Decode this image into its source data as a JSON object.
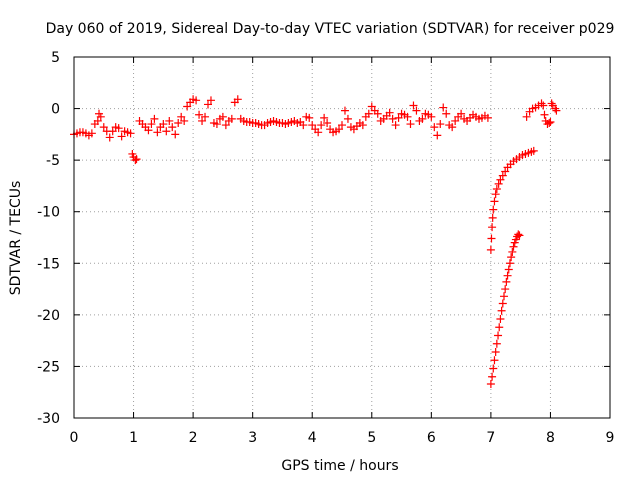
{
  "chart_data": {
    "type": "scatter",
    "title": "Day 060 of 2019, Sidereal Day-to-day VTEC variation (SDTVAR) for receiver p029",
    "xlabel": "GPS time / hours",
    "ylabel": "SDTVAR / TECUs",
    "xlim": [
      0,
      9
    ],
    "ylim": [
      -30,
      5
    ],
    "xticks": [
      "0",
      "1",
      "2",
      "3",
      "4",
      "5",
      "6",
      "7",
      "8",
      "9"
    ],
    "yticks": [
      "5",
      "0",
      "-5",
      "-10",
      "-15",
      "-20",
      "-25",
      "-30"
    ],
    "grid": true,
    "marker": "+",
    "color": "#ff0000",
    "series": [
      {
        "name": "SDTVAR",
        "points": [
          [
            0.0,
            -2.5
          ],
          [
            0.05,
            -2.4
          ],
          [
            0.1,
            -2.3
          ],
          [
            0.15,
            -2.3
          ],
          [
            0.2,
            -2.4
          ],
          [
            0.25,
            -2.6
          ],
          [
            0.3,
            -2.4
          ],
          [
            0.35,
            -1.5
          ],
          [
            0.4,
            -1.2
          ],
          [
            0.42,
            -0.5
          ],
          [
            0.45,
            -0.8
          ],
          [
            0.5,
            -1.8
          ],
          [
            0.55,
            -2.2
          ],
          [
            0.6,
            -2.8
          ],
          [
            0.65,
            -2.2
          ],
          [
            0.7,
            -1.8
          ],
          [
            0.75,
            -1.9
          ],
          [
            0.8,
            -2.7
          ],
          [
            0.85,
            -2.2
          ],
          [
            0.9,
            -2.3
          ],
          [
            0.95,
            -2.4
          ],
          [
            0.98,
            -4.4
          ],
          [
            1.0,
            -4.7
          ],
          [
            1.03,
            -5.0
          ],
          [
            1.05,
            -4.9
          ],
          [
            1.1,
            -1.2
          ],
          [
            1.15,
            -1.5
          ],
          [
            1.2,
            -1.8
          ],
          [
            1.25,
            -2.1
          ],
          [
            1.3,
            -1.5
          ],
          [
            1.35,
            -1.0
          ],
          [
            1.4,
            -2.3
          ],
          [
            1.45,
            -1.8
          ],
          [
            1.5,
            -1.5
          ],
          [
            1.55,
            -2.2
          ],
          [
            1.6,
            -1.2
          ],
          [
            1.65,
            -1.8
          ],
          [
            1.7,
            -2.5
          ],
          [
            1.75,
            -1.4
          ],
          [
            1.8,
            -0.8
          ],
          [
            1.85,
            -1.2
          ],
          [
            1.9,
            0.2
          ],
          [
            1.95,
            0.6
          ],
          [
            2.0,
            0.9
          ],
          [
            2.05,
            0.8
          ],
          [
            2.1,
            -0.6
          ],
          [
            2.15,
            -1.2
          ],
          [
            2.2,
            -0.8
          ],
          [
            2.25,
            0.4
          ],
          [
            2.3,
            0.8
          ],
          [
            2.35,
            -1.4
          ],
          [
            2.4,
            -1.5
          ],
          [
            2.45,
            -1.0
          ],
          [
            2.5,
            -0.8
          ],
          [
            2.55,
            -1.6
          ],
          [
            2.6,
            -1.2
          ],
          [
            2.65,
            -1.0
          ],
          [
            2.7,
            0.6
          ],
          [
            2.75,
            0.9
          ],
          [
            2.8,
            -1.0
          ],
          [
            2.85,
            -1.2
          ],
          [
            2.9,
            -1.3
          ],
          [
            2.95,
            -1.3
          ],
          [
            3.0,
            -1.4
          ],
          [
            3.05,
            -1.4
          ],
          [
            3.1,
            -1.5
          ],
          [
            3.15,
            -1.6
          ],
          [
            3.2,
            -1.6
          ],
          [
            3.25,
            -1.4
          ],
          [
            3.3,
            -1.3
          ],
          [
            3.35,
            -1.2
          ],
          [
            3.4,
            -1.3
          ],
          [
            3.45,
            -1.4
          ],
          [
            3.5,
            -1.4
          ],
          [
            3.55,
            -1.5
          ],
          [
            3.6,
            -1.4
          ],
          [
            3.65,
            -1.3
          ],
          [
            3.7,
            -1.2
          ],
          [
            3.75,
            -1.4
          ],
          [
            3.8,
            -1.3
          ],
          [
            3.85,
            -1.6
          ],
          [
            3.9,
            -0.8
          ],
          [
            3.95,
            -0.9
          ],
          [
            4.0,
            -1.6
          ],
          [
            4.05,
            -2.0
          ],
          [
            4.1,
            -2.3
          ],
          [
            4.15,
            -1.6
          ],
          [
            4.2,
            -0.9
          ],
          [
            4.25,
            -1.4
          ],
          [
            4.3,
            -2.0
          ],
          [
            4.35,
            -2.3
          ],
          [
            4.4,
            -2.2
          ],
          [
            4.45,
            -2.0
          ],
          [
            4.5,
            -1.6
          ],
          [
            4.55,
            -0.2
          ],
          [
            4.6,
            -1.0
          ],
          [
            4.65,
            -1.8
          ],
          [
            4.7,
            -2.0
          ],
          [
            4.75,
            -1.7
          ],
          [
            4.8,
            -1.4
          ],
          [
            4.85,
            -1.6
          ],
          [
            4.9,
            -0.8
          ],
          [
            4.95,
            -0.5
          ],
          [
            5.0,
            0.2
          ],
          [
            5.05,
            -0.2
          ],
          [
            5.1,
            -0.5
          ],
          [
            5.15,
            -1.2
          ],
          [
            5.2,
            -1.0
          ],
          [
            5.25,
            -0.7
          ],
          [
            5.3,
            -0.4
          ],
          [
            5.35,
            -1.0
          ],
          [
            5.4,
            -1.6
          ],
          [
            5.45,
            -0.9
          ],
          [
            5.5,
            -0.5
          ],
          [
            5.55,
            -0.6
          ],
          [
            5.6,
            -0.8
          ],
          [
            5.65,
            -1.5
          ],
          [
            5.7,
            0.3
          ],
          [
            5.75,
            -0.2
          ],
          [
            5.8,
            -1.2
          ],
          [
            5.85,
            -1.0
          ],
          [
            5.9,
            -0.5
          ],
          [
            5.95,
            -0.6
          ],
          [
            6.0,
            -0.8
          ],
          [
            6.05,
            -1.8
          ],
          [
            6.1,
            -2.6
          ],
          [
            6.15,
            -1.5
          ],
          [
            6.2,
            0.1
          ],
          [
            6.25,
            -0.5
          ],
          [
            6.3,
            -1.6
          ],
          [
            6.35,
            -1.8
          ],
          [
            6.4,
            -1.2
          ],
          [
            6.45,
            -0.8
          ],
          [
            6.5,
            -0.5
          ],
          [
            6.55,
            -1.0
          ],
          [
            6.6,
            -1.2
          ],
          [
            6.65,
            -0.9
          ],
          [
            6.7,
            -0.6
          ],
          [
            6.75,
            -0.8
          ],
          [
            6.8,
            -1.0
          ],
          [
            6.85,
            -0.9
          ],
          [
            6.9,
            -0.7
          ],
          [
            6.95,
            -0.9
          ],
          [
            7.0,
            -13.7
          ],
          [
            7.01,
            -12.6
          ],
          [
            7.02,
            -11.5
          ],
          [
            7.03,
            -10.6
          ],
          [
            7.04,
            -9.8
          ],
          [
            7.06,
            -9.0
          ],
          [
            7.08,
            -8.3
          ],
          [
            7.1,
            -7.8
          ],
          [
            7.13,
            -7.3
          ],
          [
            7.16,
            -6.9
          ],
          [
            7.2,
            -6.5
          ],
          [
            7.24,
            -6.1
          ],
          [
            7.28,
            -5.7
          ],
          [
            7.33,
            -5.4
          ],
          [
            7.38,
            -5.1
          ],
          [
            7.43,
            -4.9
          ],
          [
            7.48,
            -4.7
          ],
          [
            7.53,
            -4.5
          ],
          [
            7.58,
            -4.4
          ],
          [
            7.63,
            -4.3
          ],
          [
            7.68,
            -4.2
          ],
          [
            7.72,
            -4.1
          ],
          [
            7.0,
            -26.7
          ],
          [
            7.02,
            -26.0
          ],
          [
            7.04,
            -25.2
          ],
          [
            7.06,
            -24.4
          ],
          [
            7.08,
            -23.6
          ],
          [
            7.1,
            -22.8
          ],
          [
            7.12,
            -22.0
          ],
          [
            7.14,
            -21.2
          ],
          [
            7.16,
            -20.4
          ],
          [
            7.18,
            -19.6
          ],
          [
            7.2,
            -18.9
          ],
          [
            7.22,
            -18.2
          ],
          [
            7.24,
            -17.5
          ],
          [
            7.26,
            -16.8
          ],
          [
            7.28,
            -16.2
          ],
          [
            7.3,
            -15.6
          ],
          [
            7.32,
            -15.0
          ],
          [
            7.34,
            -14.4
          ],
          [
            7.36,
            -13.9
          ],
          [
            7.38,
            -13.4
          ],
          [
            7.4,
            -13.0
          ],
          [
            7.42,
            -12.7
          ],
          [
            7.44,
            -12.4
          ],
          [
            7.46,
            -12.2
          ],
          [
            7.48,
            -12.3
          ],
          [
            7.6,
            -0.8
          ],
          [
            7.65,
            -0.3
          ],
          [
            7.7,
            0.0
          ],
          [
            7.75,
            0.1
          ],
          [
            7.8,
            0.3
          ],
          [
            7.85,
            0.5
          ],
          [
            7.88,
            0.3
          ],
          [
            7.9,
            -0.6
          ],
          [
            7.92,
            -1.2
          ],
          [
            7.95,
            -1.5
          ],
          [
            7.98,
            -1.4
          ],
          [
            8.0,
            -1.3
          ],
          [
            8.02,
            0.5
          ],
          [
            8.04,
            0.3
          ],
          [
            8.08,
            0.0
          ],
          [
            8.1,
            -0.2
          ]
        ]
      }
    ]
  }
}
